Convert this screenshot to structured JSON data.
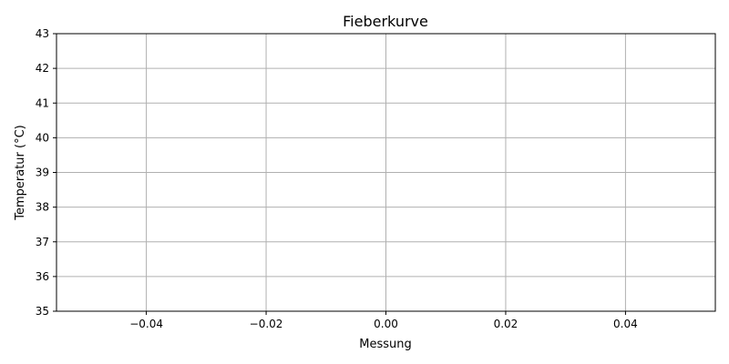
{
  "chart_data": {
    "type": "line",
    "title": "Fieberkurve",
    "xlabel": "Messung",
    "ylabel": "Temperatur (°C)",
    "xlim": [
      -0.055,
      0.055
    ],
    "ylim": [
      35,
      43
    ],
    "x_ticks": [
      "−0.04",
      "−0.02",
      "0.00",
      "0.02",
      "0.04"
    ],
    "x_tick_values": [
      -0.04,
      -0.02,
      0.0,
      0.02,
      0.04
    ],
    "y_ticks": [
      "35",
      "36",
      "37",
      "38",
      "39",
      "40",
      "41",
      "42",
      "43"
    ],
    "y_tick_values": [
      35,
      36,
      37,
      38,
      39,
      40,
      41,
      42,
      43
    ],
    "grid": true,
    "series": [
      {
        "x": [],
        "y": []
      }
    ]
  }
}
